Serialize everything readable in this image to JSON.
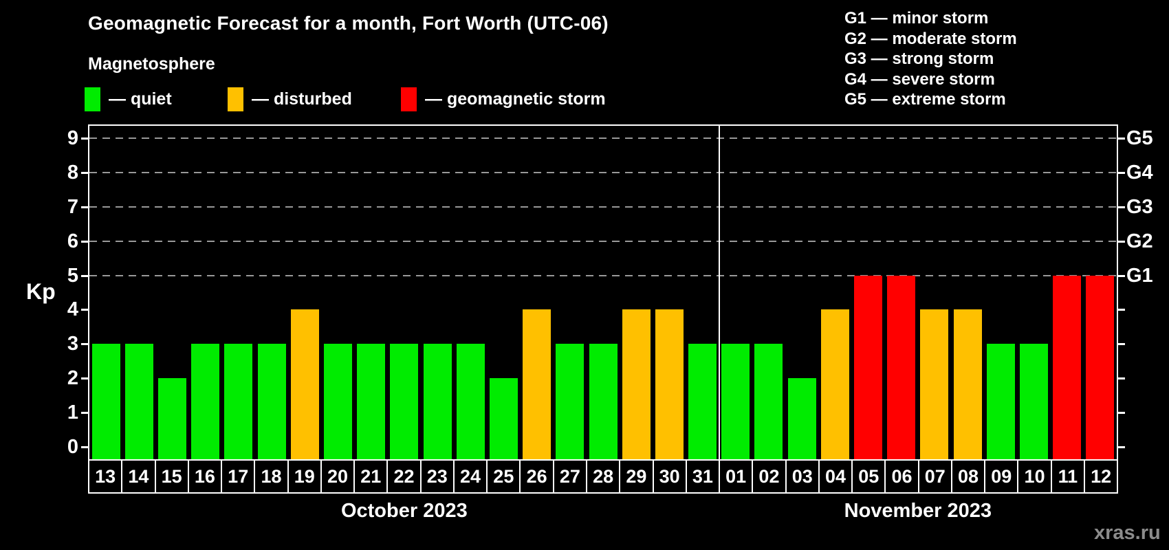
{
  "header": {
    "title": "Geomagnetic Forecast for a month, Fort Worth (UTC-06)",
    "subtitle": "Magnetosphere"
  },
  "legend": {
    "items": [
      {
        "status": "quiet",
        "label": "— quiet"
      },
      {
        "status": "disturbed",
        "label": "— disturbed"
      },
      {
        "status": "storm",
        "label": "— geomagnetic storm"
      }
    ]
  },
  "g_scale_legend": {
    "lines": [
      "G1 — minor storm",
      "G2 — moderate storm",
      "G3 — strong storm",
      "G4 — severe storm",
      "G5 — extreme storm"
    ]
  },
  "colors": {
    "quiet": "#00ec00",
    "disturbed": "#ffc000",
    "storm": "#ff0000",
    "grid": "#999999",
    "axis": "#ffffff",
    "background": "#000000"
  },
  "watermark": "xras.ru",
  "chart_data": {
    "type": "bar",
    "title": "Geomagnetic Forecast for a month, Fort Worth (UTC-06)",
    "ylabel": "Kp",
    "y_axis": {
      "min": -0.36,
      "max": 9.36,
      "ticks": [
        0,
        1,
        2,
        3,
        4,
        5,
        6,
        7,
        8,
        9
      ],
      "grid_values": [
        5,
        6,
        7,
        8,
        9
      ],
      "grid": true
    },
    "right_axis_labels": [
      {
        "value": 5,
        "label": "G1"
      },
      {
        "value": 6,
        "label": "G2"
      },
      {
        "value": 7,
        "label": "G3"
      },
      {
        "value": 8,
        "label": "G4"
      },
      {
        "value": 9,
        "label": "G5"
      }
    ],
    "months": [
      {
        "label": "October 2023",
        "days": [
          {
            "day": "13",
            "kp": 3,
            "status": "quiet"
          },
          {
            "day": "14",
            "kp": 3,
            "status": "quiet"
          },
          {
            "day": "15",
            "kp": 2,
            "status": "quiet"
          },
          {
            "day": "16",
            "kp": 3,
            "status": "quiet"
          },
          {
            "day": "17",
            "kp": 3,
            "status": "quiet"
          },
          {
            "day": "18",
            "kp": 3,
            "status": "quiet"
          },
          {
            "day": "19",
            "kp": 4,
            "status": "disturbed"
          },
          {
            "day": "20",
            "kp": 3,
            "status": "quiet"
          },
          {
            "day": "21",
            "kp": 3,
            "status": "quiet"
          },
          {
            "day": "22",
            "kp": 3,
            "status": "quiet"
          },
          {
            "day": "23",
            "kp": 3,
            "status": "quiet"
          },
          {
            "day": "24",
            "kp": 3,
            "status": "quiet"
          },
          {
            "day": "25",
            "kp": 2,
            "status": "quiet"
          },
          {
            "day": "26",
            "kp": 4,
            "status": "disturbed"
          },
          {
            "day": "27",
            "kp": 3,
            "status": "quiet"
          },
          {
            "day": "28",
            "kp": 3,
            "status": "quiet"
          },
          {
            "day": "29",
            "kp": 4,
            "status": "disturbed"
          },
          {
            "day": "30",
            "kp": 4,
            "status": "disturbed"
          },
          {
            "day": "31",
            "kp": 3,
            "status": "quiet"
          }
        ]
      },
      {
        "label": "November 2023",
        "days": [
          {
            "day": "01",
            "kp": 3,
            "status": "quiet"
          },
          {
            "day": "02",
            "kp": 3,
            "status": "quiet"
          },
          {
            "day": "03",
            "kp": 2,
            "status": "quiet"
          },
          {
            "day": "04",
            "kp": 4,
            "status": "disturbed"
          },
          {
            "day": "05",
            "kp": 5,
            "status": "storm"
          },
          {
            "day": "06",
            "kp": 5,
            "status": "storm"
          },
          {
            "day": "07",
            "kp": 4,
            "status": "disturbed"
          },
          {
            "day": "08",
            "kp": 4,
            "status": "disturbed"
          },
          {
            "day": "09",
            "kp": 3,
            "status": "quiet"
          },
          {
            "day": "10",
            "kp": 3,
            "status": "quiet"
          },
          {
            "day": "11",
            "kp": 5,
            "status": "storm"
          },
          {
            "day": "12",
            "kp": 5,
            "status": "storm"
          }
        ]
      }
    ]
  }
}
